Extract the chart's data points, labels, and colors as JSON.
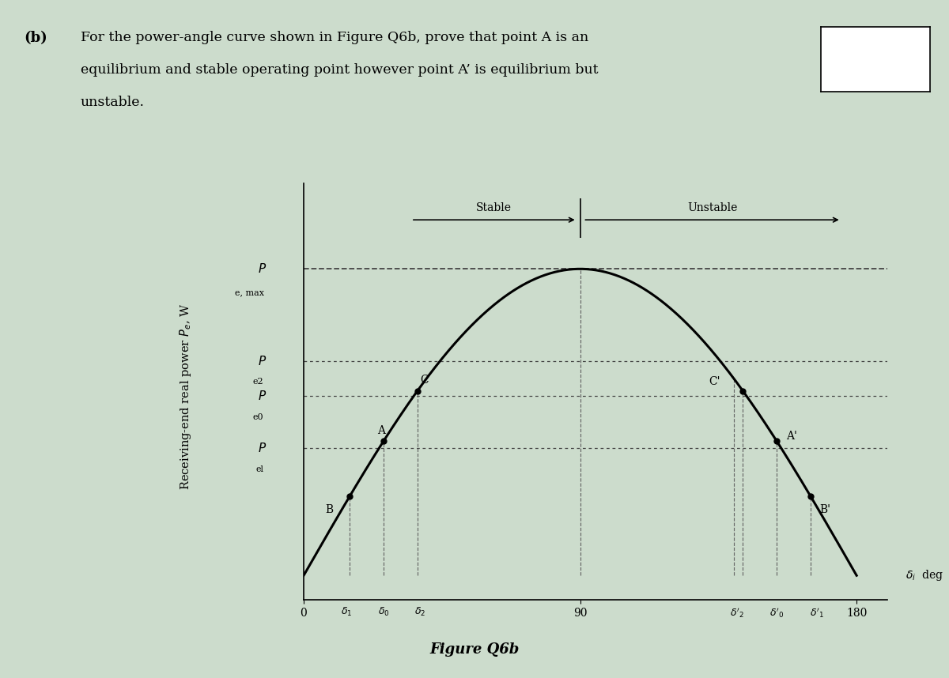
{
  "title_b": "(b)",
  "title_text_line1": "For the power-angle curve shown in Figure Q6b, prove that point A is an",
  "title_text_line2": "equilibrium and stable operating point however point A’ is equilibrium but",
  "title_text_line3": "unstable.",
  "ylabel": "Receiving-end real power P",
  "ylabel_sub": "e",
  "ylabel_units": ", W",
  "xlabel": "δ",
  "xlabel_sub": "i",
  "xlabel_units": "  deg",
  "fig_caption": "Figure Q6b",
  "pmax_label_main": "P",
  "pmax_label_sub": "e, max",
  "pc2_label_main": "P",
  "pc2_label_sub": "e2",
  "pc0_label_main": "P",
  "pc0_label_sub": "e0",
  "pc1_label_main": "P",
  "pc1_label_sub": "el",
  "stable_label": "Stable",
  "unstable_label": "Unstable",
  "p_max": 1.0,
  "delta_A": 26,
  "delta_B": 15,
  "delta_C": 37,
  "delta_Ap": 154,
  "delta_Bp": 165,
  "delta_Cp": 143,
  "p_c2": 0.7,
  "p_c0": 0.585,
  "p_e1": 0.415,
  "bg_color": "#ccdccc",
  "curve_color": "#000000",
  "dashed_color": "#444444",
  "dot_color": "#000000",
  "vline_color": "#666666",
  "white_rect": true
}
